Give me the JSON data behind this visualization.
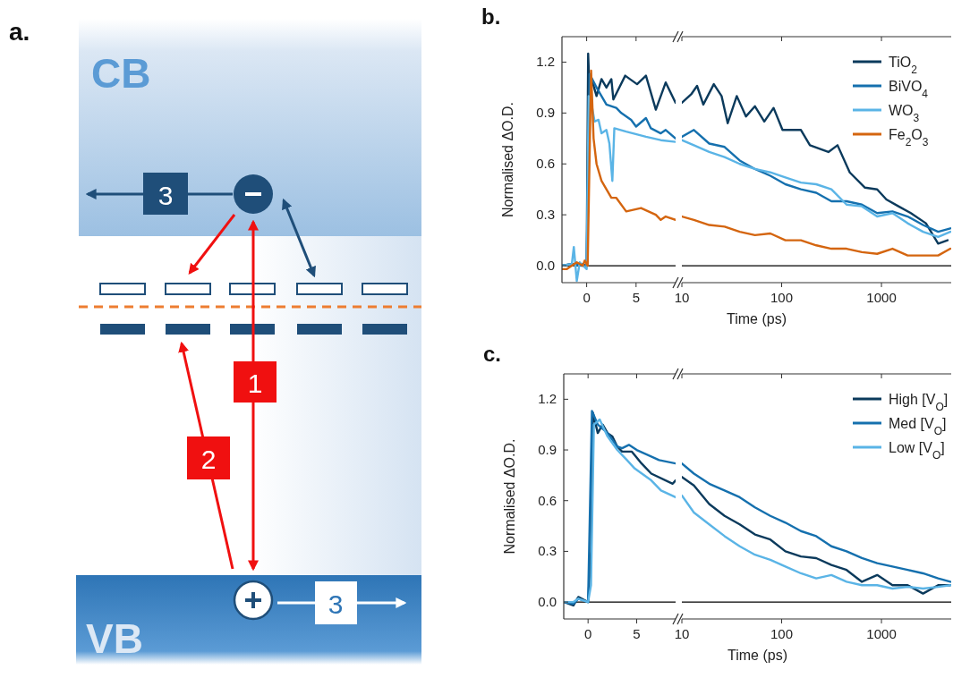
{
  "chart_data": [
    {
      "type": "other",
      "title": "a.",
      "annotations": [
        "CB",
        "VB",
        "1",
        "2",
        "3",
        "3"
      ]
    },
    {
      "type": "line",
      "title": "b.",
      "ylabel": "Normalised ΔO.D.",
      "xlabel": "Time (ps)",
      "xlim": [
        -2.5,
        9
      ],
      "xticks": [
        0,
        5
      ],
      "ylim": [
        -0.1,
        1.35
      ],
      "yticks": [
        {
          "value": 0,
          "label": "0.0"
        },
        0.3,
        0.6,
        0.9,
        1.2
      ],
      "ref_lines": [
        {
          "axis": "y",
          "value": 0,
          "color": "#000000"
        }
      ],
      "line_style": "solid",
      "series": [
        {
          "color": "#0b3a5c",
          "x": [
            -2.5,
            -1.5,
            -0.5,
            0,
            0.15,
            0.3,
            0.5,
            1,
            1.5,
            2,
            2.5,
            2.7,
            3.9,
            5.1,
            6,
            7,
            8,
            9
          ],
          "values": [
            0,
            0.01,
            0.01,
            0,
            1.25,
            1.02,
            1.1,
            1.0,
            1.1,
            1.05,
            1.1,
            0.98,
            1.12,
            1.07,
            1.12,
            0.92,
            1.08,
            0.96
          ]
        },
        {
          "color": "#1570ae",
          "x": [
            -2.5,
            -1.5,
            -0.5,
            0,
            0.3,
            1,
            1.5,
            2,
            3,
            3.5,
            4.5,
            5,
            6,
            6.5,
            7.5,
            8,
            9
          ],
          "values": [
            0,
            0.01,
            0,
            0,
            1.13,
            1.05,
            1.0,
            0.95,
            0.93,
            0.9,
            0.86,
            0.82,
            0.87,
            0.81,
            0.78,
            0.8,
            0.75
          ]
        },
        {
          "color": "#5ab4e6",
          "x": [
            -2.5,
            -1.5,
            -1.3,
            -1,
            -0.7,
            0,
            0.2,
            0.5,
            0.8,
            1.2,
            1.5,
            2,
            2.3,
            2.6,
            2.8,
            4,
            6,
            7.5,
            9
          ],
          "values": [
            0,
            0.01,
            0.11,
            -0.09,
            0.02,
            -0.02,
            1.0,
            0.95,
            0.85,
            0.86,
            0.78,
            0.8,
            0.72,
            0.5,
            0.81,
            0.79,
            0.76,
            0.74,
            0.73
          ]
        },
        {
          "color": "#d4650f",
          "x": [
            -2.5,
            -2,
            -1,
            -0.4,
            -0.2,
            0.1,
            0.45,
            0.7,
            1,
            1.5,
            2,
            2.5,
            3,
            4,
            5.5,
            7,
            7.5,
            8,
            9
          ],
          "values": [
            -0.02,
            -0.02,
            0.02,
            0,
            0.03,
            0,
            1.15,
            0.75,
            0.6,
            0.5,
            0.45,
            0.4,
            0.4,
            0.32,
            0.34,
            0.3,
            0.27,
            0.29,
            0.27
          ]
        }
      ]
    },
    {
      "type": "line",
      "log": "x",
      "xlim": [
        10,
        5000
      ],
      "xticks": [
        10,
        100,
        1000
      ],
      "ylim": [
        -0.1,
        1.35
      ],
      "tick_labels": "x",
      "legend": "top right",
      "ref_lines": [
        {
          "axis": "y",
          "value": 0,
          "color": "#000000"
        }
      ],
      "line_style": "solid",
      "x": [
        10,
        13.2,
        18.8,
        26.8,
        38,
        54,
        77,
        109,
        156,
        222,
        315,
        447,
        637,
        906,
        1290,
        1830,
        2610,
        3700,
        4900
      ],
      "series": [
        {
          "name": "TiO$_{2}$",
          "color": "#0b3a5c",
          "x": [
            10,
            12.4,
            14.2,
            16.4,
            20.9,
            25,
            28.8,
            35.5,
            43.9,
            54,
            67,
            83,
            102,
            156,
            192,
            294,
            363,
            481,
            684,
            906,
            1120,
            1480,
            1970,
            2790,
            3700,
            4600
          ],
          "values": [
            0.96,
            1.01,
            1.06,
            0.95,
            1.07,
            1.0,
            0.84,
            1.0,
            0.88,
            0.94,
            0.85,
            0.93,
            0.8,
            0.8,
            0.71,
            0.67,
            0.71,
            0.55,
            0.46,
            0.45,
            0.39,
            0.35,
            0.31,
            0.25,
            0.13,
            0.15
          ]
        },
        {
          "name": "BiVO$_{4}$",
          "color": "#1570ae",
          "values": [
            0.76,
            0.8,
            0.72,
            0.7,
            0.62,
            0.57,
            0.53,
            0.48,
            0.45,
            0.43,
            0.38,
            0.38,
            0.36,
            0.31,
            0.32,
            0.29,
            0.24,
            0.2,
            0.22
          ]
        },
        {
          "name": "WO$_{3}$",
          "color": "#5ab4e6",
          "values": [
            0.74,
            0.71,
            0.67,
            0.64,
            0.6,
            0.57,
            0.55,
            0.52,
            0.49,
            0.48,
            0.45,
            0.36,
            0.35,
            0.29,
            0.31,
            0.25,
            0.2,
            0.17,
            0.2
          ]
        },
        {
          "name": "Fe$_{2}$O$_{3}$",
          "color": "#d4650f",
          "values": [
            0.29,
            0.27,
            0.24,
            0.23,
            0.2,
            0.18,
            0.19,
            0.15,
            0.15,
            0.12,
            0.1,
            0.1,
            0.08,
            0.07,
            0.1,
            0.06,
            0.06,
            0.06,
            0.1
          ]
        }
      ]
    },
    {
      "type": "line",
      "title": "c.",
      "ylabel": "Normalised ΔO.D.",
      "xlabel": "Time (ps)",
      "xlim": [
        -2.5,
        9
      ],
      "xticks": [
        0,
        5
      ],
      "ylim": [
        -0.1,
        1.35
      ],
      "yticks": [
        {
          "value": 0,
          "label": "0.0"
        },
        0.3,
        0.6,
        0.9,
        1.2
      ],
      "ref_lines": [
        {
          "axis": "y",
          "value": 0,
          "color": "#000000"
        }
      ],
      "line_style": "solid",
      "series": [
        {
          "color": "#0b3a5c",
          "x": [
            -2.5,
            -1.5,
            -1,
            0,
            0.3,
            0.5,
            1,
            1.5,
            2,
            2.5,
            3,
            3.5,
            4.5,
            5.5,
            6.5,
            8.7,
            9
          ],
          "values": [
            0,
            -0.02,
            0.03,
            0,
            0.3,
            1.12,
            1.0,
            1.05,
            1.0,
            0.98,
            0.92,
            0.89,
            0.89,
            0.82,
            0.76,
            0.7,
            0.72
          ]
        },
        {
          "color": "#1570ae",
          "x": [
            -2.5,
            -1.5,
            -1,
            0,
            0.4,
            1,
            2,
            3,
            3.5,
            4.2,
            5,
            7.3,
            9
          ],
          "values": [
            0,
            -0.01,
            0.02,
            0,
            1.13,
            1.05,
            1.0,
            0.92,
            0.91,
            0.93,
            0.9,
            0.84,
            0.82
          ]
        },
        {
          "color": "#5ab4e6",
          "x": [
            -2.5,
            -1.5,
            -1,
            0,
            0.3,
            0.6,
            1.2,
            2,
            3,
            4,
            4.8,
            6.5,
            7.5,
            9
          ],
          "values": [
            0,
            0,
            0.02,
            0,
            0.1,
            1.05,
            1.08,
            0.98,
            0.9,
            0.84,
            0.79,
            0.72,
            0.66,
            0.62
          ]
        }
      ]
    },
    {
      "type": "line",
      "log": "x",
      "xlim": [
        10,
        5000
      ],
      "xticks": [
        10,
        100,
        1000
      ],
      "ylim": [
        -0.1,
        1.35
      ],
      "tick_labels": "x",
      "legend": "top right",
      "ref_lines": [
        {
          "axis": "y",
          "value": 0,
          "color": "#000000"
        }
      ],
      "line_style": "solid",
      "x": [
        10,
        13.2,
        18.8,
        26.8,
        38,
        54,
        77,
        109,
        156,
        222,
        315,
        447,
        637,
        906,
        1290,
        1830,
        2610,
        3700,
        4900
      ],
      "series": [
        {
          "name": "High [V$_{O}$]",
          "color": "#0b3a5c",
          "values": [
            0.74,
            0.69,
            0.58,
            0.51,
            0.46,
            0.4,
            0.37,
            0.3,
            0.27,
            0.26,
            0.22,
            0.19,
            0.12,
            0.16,
            0.1,
            0.1,
            0.05,
            0.1,
            0.1
          ]
        },
        {
          "name": "Med [V$_{O}$]",
          "color": "#1570ae",
          "values": [
            0.82,
            0.76,
            0.7,
            0.66,
            0.62,
            0.56,
            0.51,
            0.47,
            0.42,
            0.39,
            0.33,
            0.3,
            0.26,
            0.23,
            0.21,
            0.19,
            0.17,
            0.14,
            0.12
          ]
        },
        {
          "name": "Low [V$_{O}$]",
          "color": "#5ab4e6",
          "values": [
            0.63,
            0.53,
            0.46,
            0.39,
            0.33,
            0.28,
            0.25,
            0.21,
            0.17,
            0.14,
            0.16,
            0.12,
            0.1,
            0.1,
            0.08,
            0.09,
            0.08,
            0.09,
            0.1
          ]
        }
      ]
    }
  ]
}
